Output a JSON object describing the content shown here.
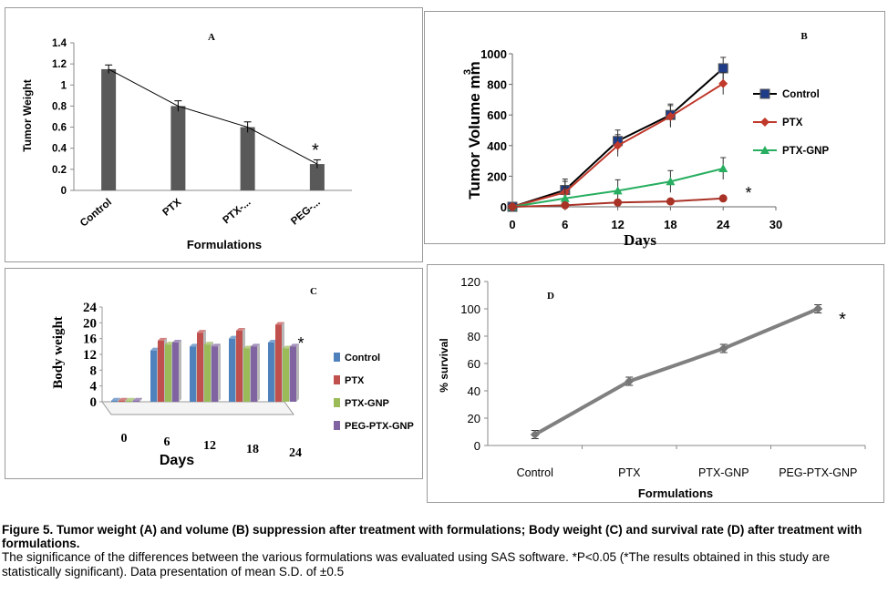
{
  "chart_data": [
    {
      "id": "A",
      "panel_label": "A",
      "type": "bar",
      "categories": [
        "Control",
        "PTX",
        "PTX-...",
        "PEG-..."
      ],
      "values": [
        1.15,
        0.8,
        0.6,
        0.25
      ],
      "error": [
        0.04,
        0.05,
        0.05,
        0.04
      ],
      "ylabel": "Tumor Weight",
      "xlabel": "Formulations",
      "ylim": [
        0,
        1.4
      ],
      "yticks": [
        "0",
        "0.2",
        "0.4",
        "0.6",
        "0.8",
        "1",
        "1.2",
        "1.4"
      ],
      "annotation": "*",
      "color": "#595959"
    },
    {
      "id": "B",
      "panel_label": "B",
      "type": "line",
      "x": [
        0,
        6,
        12,
        18,
        24
      ],
      "xticks": [
        "0",
        "6",
        "12",
        "18",
        "24",
        "30"
      ],
      "yticks": [
        "0",
        "200",
        "400",
        "600",
        "800",
        "1000"
      ],
      "xlim": [
        0,
        30
      ],
      "ylim": [
        0,
        1000
      ],
      "xlabel": "Days",
      "ylabel": "Tumor Volume mm",
      "ylabel_sup": "3",
      "annotation": "*",
      "legend_position": "right",
      "series": [
        {
          "name": "Control",
          "values": [
            0,
            110,
            430,
            600,
            905
          ],
          "color": "#000000",
          "marker": "square"
        },
        {
          "name": "PTX",
          "values": [
            0,
            95,
            400,
            590,
            805
          ],
          "color": "#c0392b",
          "marker": "diamond"
        },
        {
          "name": "PTX-GNP",
          "values": [
            0,
            55,
            105,
            165,
            250
          ],
          "color": "#27ae60",
          "marker": "triangle"
        },
        {
          "values": [
            0,
            10,
            28,
            35,
            55
          ],
          "color": "#a93226",
          "marker": "circle"
        }
      ]
    },
    {
      "id": "C",
      "panel_label": "C",
      "type": "bar",
      "categories": [
        "0",
        "6",
        "12",
        "18",
        "24"
      ],
      "yticks": [
        "0",
        "4",
        "8",
        "12",
        "16",
        "20",
        "24"
      ],
      "ylim": [
        0,
        24
      ],
      "xlabel": "Days",
      "ylabel": "Body weight",
      "annotation": "*",
      "legend_position": "right",
      "series": [
        {
          "name": "Control",
          "values": [
            0.3,
            13,
            14,
            16,
            15
          ],
          "color": "#4f81bd"
        },
        {
          "name": "PTX",
          "values": [
            0.3,
            15.5,
            17.5,
            18,
            19.5
          ],
          "color": "#c0504d"
        },
        {
          "name": "PTX-GNP",
          "values": [
            0.3,
            14.5,
            14.5,
            13.5,
            13.5
          ],
          "color": "#9bbb59"
        },
        {
          "name": "PEG-PTX-GNP",
          "values": [
            0.3,
            15,
            14,
            14,
            14
          ],
          "color": "#8064a2"
        }
      ]
    },
    {
      "id": "D",
      "panel_label": "D",
      "type": "line",
      "categories": [
        "Control",
        "PTX",
        "PTX-GNP",
        "PEG-PTX-GNP"
      ],
      "values": [
        8,
        47,
        71,
        100
      ],
      "error": [
        3,
        3,
        3,
        3
      ],
      "ylabel": "% survival",
      "xlabel": "Formulations",
      "ylim": [
        0,
        120
      ],
      "yticks": [
        "0",
        "20",
        "40",
        "60",
        "80",
        "100",
        "120"
      ],
      "annotation": "*",
      "color": "#808080"
    }
  ],
  "caption": {
    "title": "Figure 5. Tumor weight (A) and volume (B) suppression after treatment with formulations; Body weight (C) and survival rate (D) after treatment with formulations.",
    "body": "The significance of the differences between the various formulations was evaluated using SAS software. *P<0.05 (*The results obtained in this study are statistically significant). Data presentation of mean S.D. of ±0.5"
  }
}
